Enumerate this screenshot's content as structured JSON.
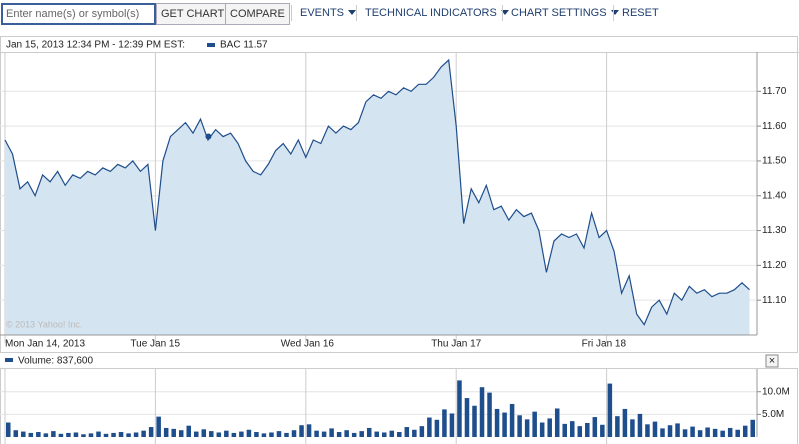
{
  "toolbar": {
    "search_placeholder": "Enter name(s) or symbol(s)",
    "get_chart": "GET CHART",
    "compare": "COMPARE",
    "events": "EVENTS",
    "technical_indicators": "TECHNICAL INDICATORS",
    "chart_settings": "CHART SETTINGS",
    "reset": "RESET"
  },
  "chart_data": [
    {
      "type": "line",
      "header": "Jan 15, 2013 12:34 PM - 12:39 PM EST:",
      "watermark": "© 2013 Yahoo! Inc.",
      "categories": [
        "Mon Jan 14, 2013",
        null,
        null,
        null,
        null,
        null,
        null,
        null,
        null,
        null,
        null,
        null,
        null,
        null,
        null,
        null,
        null,
        null,
        null,
        null,
        "Tue Jan 15",
        null,
        null,
        null,
        null,
        null,
        null,
        null,
        null,
        null,
        null,
        null,
        null,
        null,
        null,
        null,
        null,
        null,
        null,
        null,
        "Wed Jan 16",
        null,
        null,
        null,
        null,
        null,
        null,
        null,
        null,
        null,
        null,
        null,
        null,
        null,
        null,
        null,
        null,
        null,
        null,
        null,
        "Thu Jan 17",
        null,
        null,
        null,
        null,
        null,
        null,
        null,
        null,
        null,
        null,
        null,
        null,
        null,
        null,
        null,
        null,
        null,
        null,
        null,
        "Fri Jan 18",
        null,
        null,
        null,
        null,
        null,
        null,
        null,
        null,
        null,
        null,
        null,
        null,
        null,
        null,
        null,
        null,
        null,
        null,
        null
      ],
      "series": [
        {
          "name": "BAC 11.57",
          "color": "#1f4e8c",
          "fill": "#d4e4f1",
          "values": [
            11.56,
            11.52,
            11.42,
            11.44,
            11.4,
            11.46,
            11.44,
            11.47,
            11.43,
            11.46,
            11.45,
            11.47,
            11.46,
            11.48,
            11.47,
            11.49,
            11.48,
            11.5,
            11.47,
            11.49,
            11.3,
            11.5,
            11.57,
            11.59,
            11.61,
            11.58,
            11.62,
            11.56,
            11.59,
            11.57,
            11.58,
            11.55,
            11.5,
            11.47,
            11.46,
            11.49,
            11.53,
            11.55,
            11.52,
            11.56,
            11.51,
            11.56,
            11.55,
            11.6,
            11.58,
            11.6,
            11.59,
            11.61,
            11.67,
            11.69,
            11.68,
            11.7,
            11.69,
            11.71,
            11.7,
            11.72,
            11.72,
            11.74,
            11.77,
            11.79,
            11.6,
            11.32,
            11.42,
            11.38,
            11.43,
            11.36,
            11.37,
            11.33,
            11.36,
            11.34,
            11.35,
            11.3,
            11.18,
            11.27,
            11.29,
            11.28,
            11.29,
            11.25,
            11.35,
            11.28,
            11.3,
            11.24,
            11.12,
            11.17,
            11.06,
            11.03,
            11.08,
            11.1,
            11.06,
            11.12,
            11.1,
            11.14,
            11.12,
            11.13,
            11.11,
            11.12,
            11.12,
            11.13,
            11.15,
            11.13
          ]
        }
      ],
      "ylim": [
        11.0,
        11.81
      ],
      "yticks": [
        {
          "value": 11.1,
          "label": "11.10"
        },
        {
          "value": 11.2,
          "label": "11.20"
        },
        {
          "value": 11.3,
          "label": "11.30"
        },
        {
          "value": 11.4,
          "label": "11.40"
        },
        {
          "value": 11.5,
          "label": "11.50"
        },
        {
          "value": 11.6,
          "label": "11.60"
        },
        {
          "value": 11.7,
          "label": "11.70"
        }
      ],
      "grid": true
    },
    {
      "type": "bar",
      "header": "Volume: 837,600",
      "close_button": "×",
      "color": "#1f4e8c",
      "values": [
        3200000,
        1500000,
        1200000,
        900000,
        1100000,
        800000,
        1300000,
        700000,
        900000,
        1000000,
        600000,
        800000,
        1200000,
        700000,
        900000,
        1100000,
        800000,
        1000000,
        1400000,
        2200000,
        4500000,
        2000000,
        1800000,
        1500000,
        2500000,
        1200000,
        1700000,
        1300000,
        1000000,
        1400000,
        900000,
        1200000,
        1600000,
        1100000,
        800000,
        1000000,
        1300000,
        900000,
        1500000,
        2600000,
        2800000,
        1400000,
        1200000,
        1900000,
        1100000,
        1500000,
        900000,
        1300000,
        2000000,
        1200000,
        1000000,
        1400000,
        1100000,
        2200000,
        1600000,
        2400000,
        4300000,
        3800000,
        6100000,
        5200000,
        12500000,
        8600000,
        6900000,
        11000000,
        9800000,
        6200000,
        5400000,
        7300000,
        4800000,
        3900000,
        5600000,
        3200000,
        4100000,
        6300000,
        2900000,
        3500000,
        2400000,
        3100000,
        4400000,
        2700000,
        11800000,
        4600000,
        6200000,
        3900000,
        5100000,
        2800000,
        3400000,
        1900000,
        2600000,
        3000000,
        1700000,
        2300000,
        1500000,
        2100000,
        1800000,
        1400000,
        2000000,
        1600000,
        2500000,
        3800000
      ],
      "ylim": [
        0,
        14800000
      ],
      "yticks": [
        {
          "value": 5000000,
          "label": "5.0M"
        },
        {
          "value": 10000000,
          "label": "10.0M"
        }
      ],
      "grid": true
    }
  ]
}
